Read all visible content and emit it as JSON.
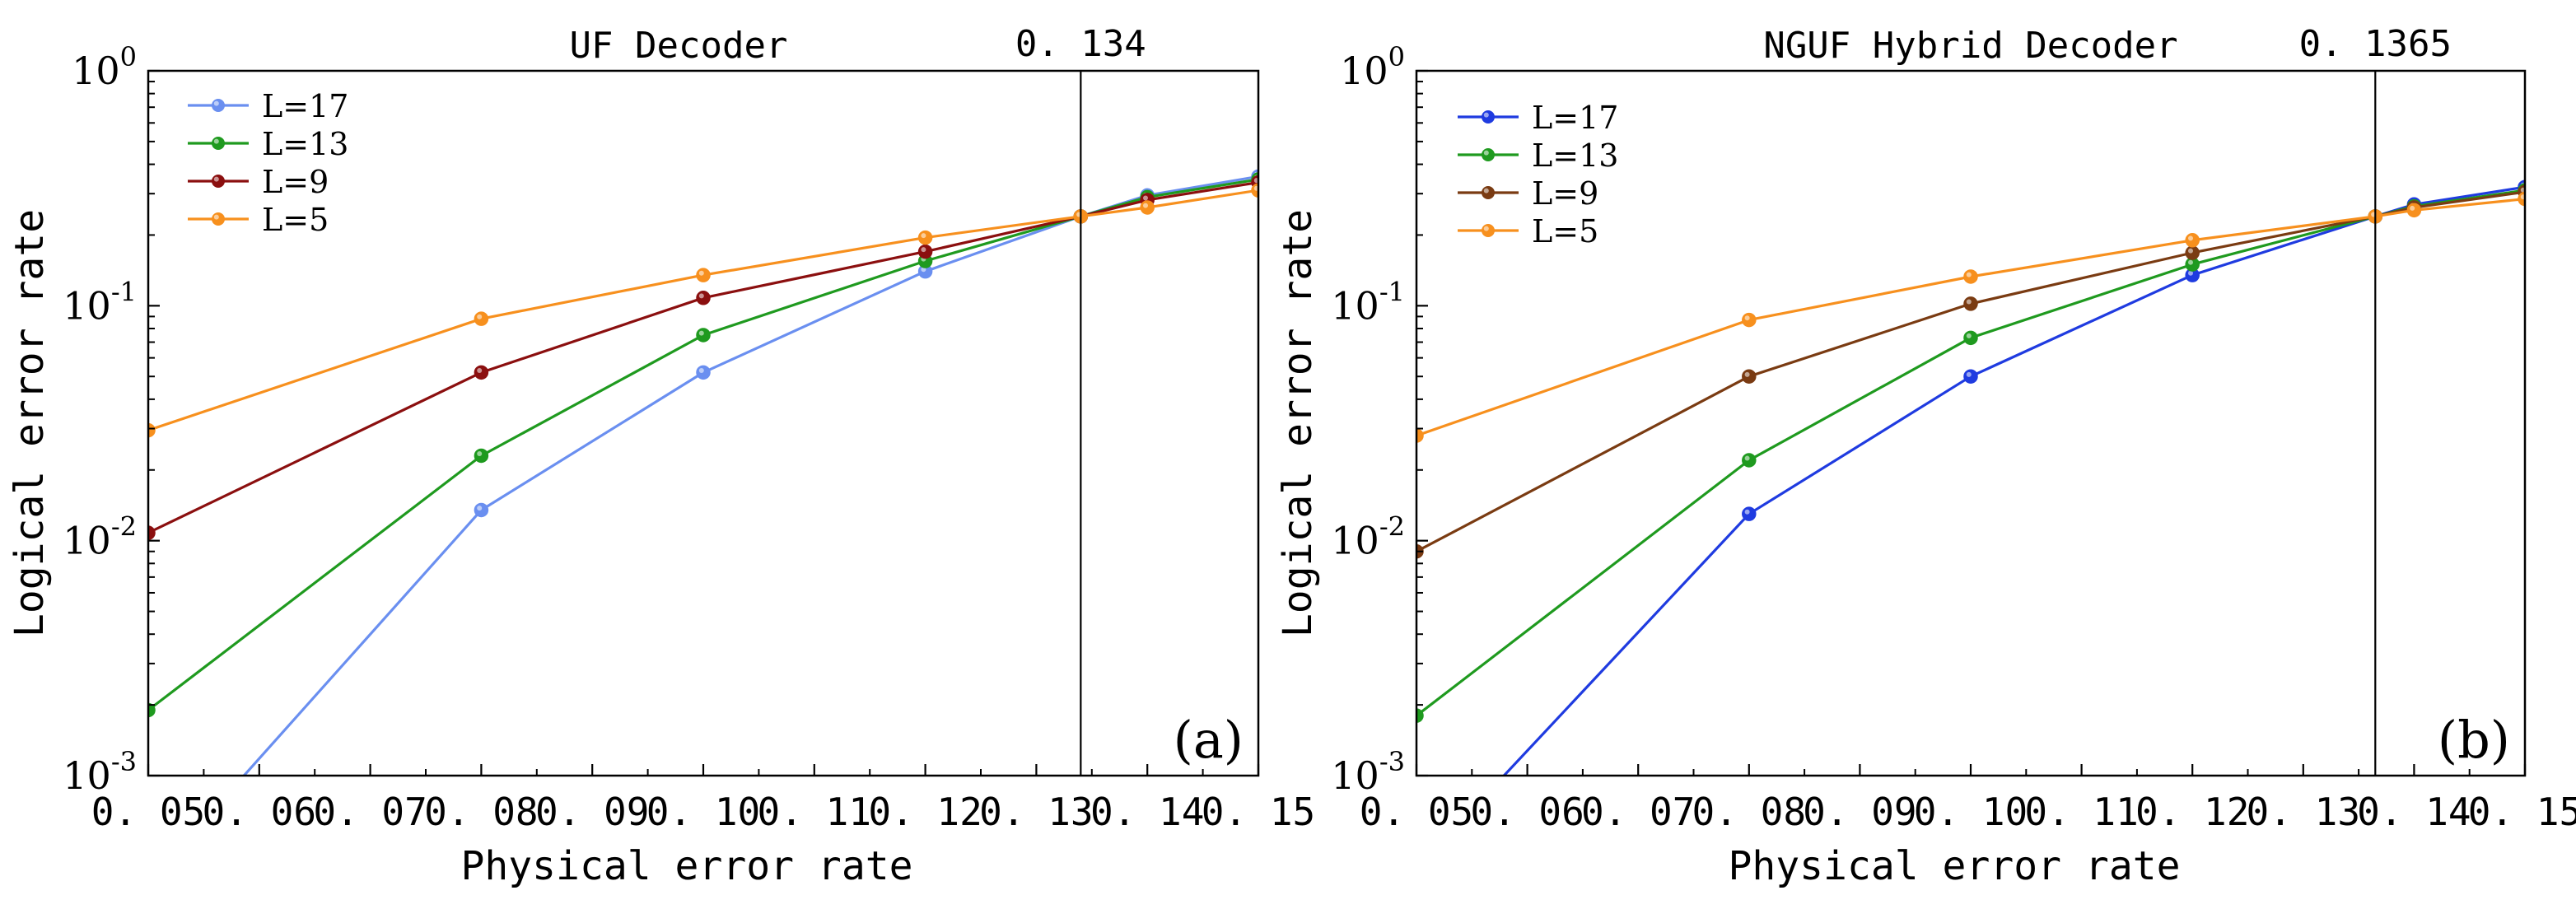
{
  "chart_data": [
    {
      "type": "line",
      "title": "UF Decoder",
      "panel_label": "(a)",
      "threshold_label": "0. 134",
      "threshold": 0.134,
      "xlabel": "Physical error rate",
      "ylabel": "Logical error rate",
      "xlim": [
        0.05,
        0.15
      ],
      "ylim": [
        0.001,
        1
      ],
      "yscale": "log",
      "xticks": [
        0.05,
        0.06,
        0.07,
        0.08,
        0.09,
        0.1,
        0.11,
        0.12,
        0.13,
        0.14,
        0.15
      ],
      "xtick_labels": [
        "0. 05",
        "0. 06",
        "0. 07",
        "0. 08",
        "0. 09",
        "0. 10",
        "0. 11",
        "0. 12",
        "0. 13",
        "0. 14",
        "0. 15"
      ],
      "yticks": [
        {
          "value": 1,
          "base": "10",
          "exp": "0"
        },
        {
          "value": 0.1,
          "base": "10",
          "exp": "-1"
        },
        {
          "value": 0.01,
          "base": "10",
          "exp": "-2"
        },
        {
          "value": 0.001,
          "base": "10",
          "exp": "-3"
        }
      ],
      "legend_position": "top-left",
      "series": [
        {
          "name": "L=17",
          "color": "#6a8ff0",
          "x": [
            0.05,
            0.08,
            0.1,
            0.12,
            0.134,
            0.14,
            0.15
          ],
          "y": [
            0.00035,
            0.0135,
            0.052,
            0.14,
            0.24,
            0.295,
            0.355
          ]
        },
        {
          "name": "L=13",
          "color": "#1f9a1f",
          "x": [
            0.05,
            0.08,
            0.1,
            0.12,
            0.134,
            0.14,
            0.15
          ],
          "y": [
            0.0019,
            0.023,
            0.075,
            0.155,
            0.24,
            0.29,
            0.345
          ]
        },
        {
          "name": "L=9",
          "color": "#8b0f0f",
          "x": [
            0.05,
            0.08,
            0.1,
            0.12,
            0.134,
            0.14,
            0.15
          ],
          "y": [
            0.0108,
            0.052,
            0.108,
            0.17,
            0.24,
            0.282,
            0.335
          ]
        },
        {
          "name": "L=5",
          "color": "#f7901e",
          "x": [
            0.05,
            0.08,
            0.1,
            0.12,
            0.134,
            0.14,
            0.15
          ],
          "y": [
            0.0295,
            0.088,
            0.135,
            0.195,
            0.24,
            0.262,
            0.31
          ]
        }
      ]
    },
    {
      "type": "line",
      "title": "NGUF Hybrid Decoder",
      "panel_label": "(b)",
      "threshold_label": "0. 1365",
      "threshold": 0.1365,
      "xlabel": "Physical error rate",
      "ylabel": "Logical error rate",
      "xlim": [
        0.05,
        0.15
      ],
      "ylim": [
        0.001,
        1
      ],
      "yscale": "log",
      "xticks": [
        0.05,
        0.06,
        0.07,
        0.08,
        0.09,
        0.1,
        0.11,
        0.12,
        0.13,
        0.14,
        0.15
      ],
      "xtick_labels": [
        "0. 05",
        "0. 06",
        "0. 07",
        "0. 08",
        "0. 09",
        "0. 10",
        "0. 11",
        "0. 12",
        "0. 13",
        "0. 14",
        "0. 15"
      ],
      "yticks": [
        {
          "value": 1,
          "base": "10",
          "exp": "0"
        },
        {
          "value": 0.1,
          "base": "10",
          "exp": "-1"
        },
        {
          "value": 0.01,
          "base": "10",
          "exp": "-2"
        },
        {
          "value": 0.001,
          "base": "10",
          "exp": "-3"
        }
      ],
      "legend_position": "top-left",
      "series": [
        {
          "name": "L=17",
          "color": "#1f3be0",
          "x": [
            0.05,
            0.08,
            0.1,
            0.12,
            0.1365,
            0.14,
            0.15
          ],
          "y": [
            0.0004,
            0.013,
            0.05,
            0.135,
            0.24,
            0.27,
            0.32
          ]
        },
        {
          "name": "L=13",
          "color": "#1f9a1f",
          "x": [
            0.05,
            0.08,
            0.1,
            0.12,
            0.1365,
            0.14,
            0.15
          ],
          "y": [
            0.0018,
            0.022,
            0.073,
            0.15,
            0.24,
            0.265,
            0.31
          ]
        },
        {
          "name": "L=9",
          "color": "#7a3b12",
          "x": [
            0.05,
            0.08,
            0.1,
            0.12,
            0.1365,
            0.14,
            0.15
          ],
          "y": [
            0.009,
            0.05,
            0.102,
            0.168,
            0.24,
            0.262,
            0.305
          ]
        },
        {
          "name": "L=5",
          "color": "#f7901e",
          "x": [
            0.05,
            0.08,
            0.1,
            0.12,
            0.1365,
            0.14,
            0.15
          ],
          "y": [
            0.028,
            0.087,
            0.133,
            0.19,
            0.24,
            0.255,
            0.285
          ]
        }
      ]
    }
  ]
}
